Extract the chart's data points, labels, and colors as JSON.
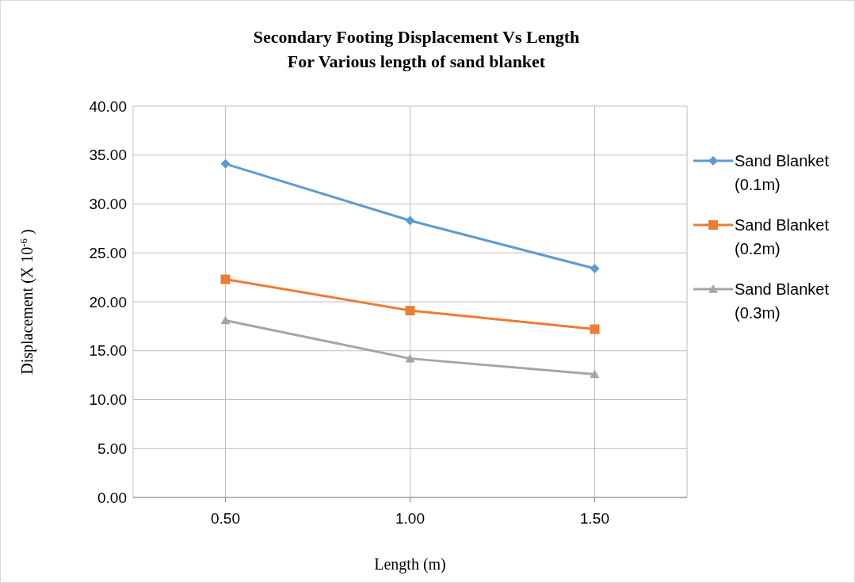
{
  "chart_data": {
    "type": "line",
    "title": "Secondary Footing Displacement Vs Length\nFor Various length of sand blanket",
    "xlabel": "Length (m)",
    "ylabel": "Displacement (X 10$^{-6}$ )",
    "categories": [
      "0.50",
      "1.00",
      "1.50"
    ],
    "series": [
      {
        "name": "Sand Blanket (0.1m)",
        "color": "#5b9bd5",
        "marker": "diamond",
        "values": [
          34.1,
          28.3,
          23.4
        ]
      },
      {
        "name": "Sand Blanket (0.2m)",
        "color": "#ed7d31",
        "marker": "square",
        "values": [
          22.3,
          19.1,
          17.2
        ]
      },
      {
        "name": "Sand Blanket (0.3m)",
        "color": "#a5a5a5",
        "marker": "triangle",
        "values": [
          18.1,
          14.2,
          12.6
        ]
      }
    ],
    "ylim": [
      0,
      40
    ],
    "yticks": [
      {
        "value": 0,
        "label": "0.00"
      },
      {
        "value": 5,
        "label": "5.00"
      },
      {
        "value": 10,
        "label": "10.00"
      },
      {
        "value": 15,
        "label": "15.00"
      },
      {
        "value": 20,
        "label": "20.00"
      },
      {
        "value": 25,
        "label": "25.00"
      },
      {
        "value": 30,
        "label": "30.00"
      },
      {
        "value": 35,
        "label": "35.00"
      },
      {
        "value": 40,
        "label": "40.00"
      }
    ],
    "grid": true,
    "legend": "right",
    "line_style": "solid"
  }
}
